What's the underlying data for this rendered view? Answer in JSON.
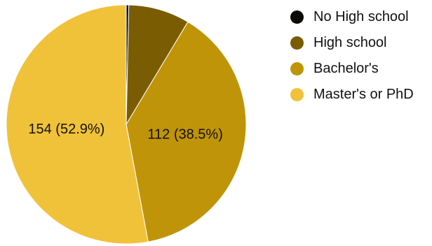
{
  "chart_data": {
    "type": "pie",
    "categories": [
      "No High school",
      "High school",
      "Bachelor's",
      "Master's or PhD"
    ],
    "values": [
      1,
      24,
      112,
      154
    ],
    "percent_labels": [
      "",
      "",
      "112 (38.5%)",
      "154 (52.9%)"
    ],
    "colors": [
      "#0d0b05",
      "#7a5c03",
      "#c09408",
      "#f0c23a"
    ],
    "start_angle_deg": 0,
    "direction": "clockwise",
    "legend_position": "right",
    "title": ""
  }
}
